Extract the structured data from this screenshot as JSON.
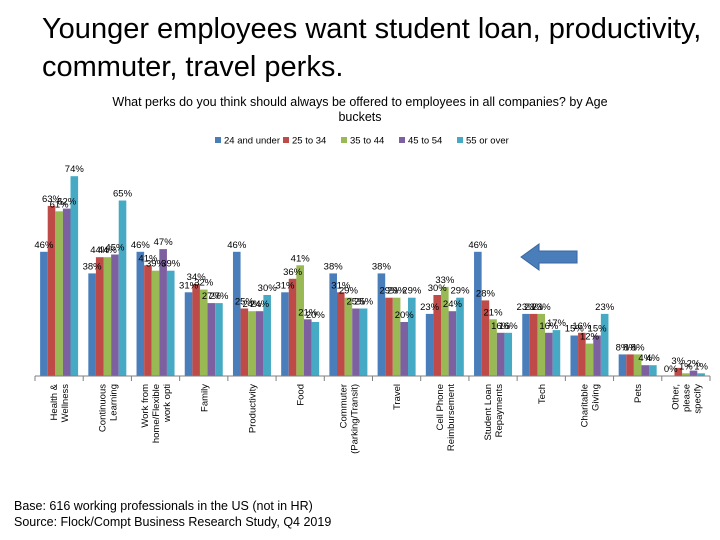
{
  "slide": {
    "title": "Younger employees want student loan, productivity, commuter, travel perks.",
    "footnote_base": "Base: 616 working professionals in the US (not in HR)",
    "footnote_source": "Source: Flock/Compt Business Research Study, Q4 2019"
  },
  "chart_data": {
    "type": "bar",
    "title": "What perks do you think should always be offered to employees in all companies? by Age buckets",
    "legend_position": "top",
    "grid": false,
    "ylim": [
      0,
      80
    ],
    "categories": [
      "Health & Wellness",
      "Continuous Learning",
      "Work from home/Flexible work opti",
      "Family",
      "Productivity",
      "Food",
      "Commuter (Parking/Transit)",
      "Travel",
      "Cell Phone Reimbursement",
      "Student Loan Repayments",
      "Tech",
      "Charitable Giving",
      "Pets",
      "Other, please specify"
    ],
    "series": [
      {
        "name": "24 and under",
        "color": "#4a7ebb",
        "values": [
          46,
          38,
          46,
          31,
          46,
          31,
          38,
          38,
          23,
          46,
          23,
          15,
          8,
          0
        ]
      },
      {
        "name": "25 to 34",
        "color": "#be4b48",
        "values": [
          63,
          44,
          41,
          34,
          25,
          36,
          31,
          29,
          30,
          28,
          23,
          16,
          8,
          3
        ]
      },
      {
        "name": "35 to 44",
        "color": "#98b954",
        "values": [
          61,
          44,
          39,
          32,
          24,
          41,
          29,
          29,
          33,
          21,
          23,
          12,
          8,
          1
        ]
      },
      {
        "name": "45 to 54",
        "color": "#7d60a0",
        "values": [
          62,
          45,
          47,
          27,
          24,
          21,
          25,
          20,
          24,
          16,
          16,
          15,
          4,
          2
        ]
      },
      {
        "name": "55 or over",
        "color": "#46aac5",
        "values": [
          74,
          65,
          39,
          27,
          30,
          20,
          25,
          29,
          29,
          16,
          17,
          23,
          4,
          1
        ]
      }
    ],
    "data_label_suffix": "%",
    "annotation": {
      "type": "arrow",
      "direction": "left",
      "color": "#4a7ebb",
      "points_to": "Student Loan Repayments"
    }
  }
}
